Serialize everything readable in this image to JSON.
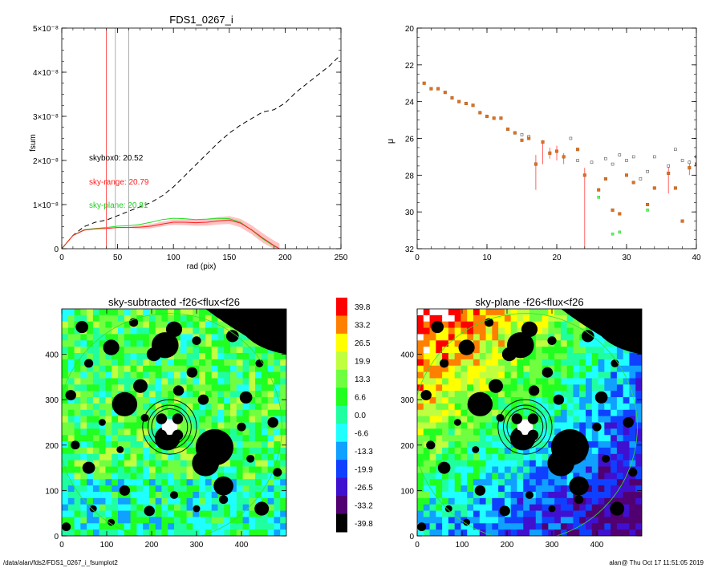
{
  "footer": {
    "path": "/data/alan/fds2/FDS1_0267_i_fsumplot2",
    "stamp": "alan@  Thu Oct 17 11:51:05 2019"
  },
  "colors": {
    "red": "#ff2020",
    "green": "#22dd22",
    "black": "#000000",
    "grey": "#999999",
    "orange": "#e07020"
  },
  "chart_data": [
    {
      "type": "line",
      "title": "FDS1_0267_i",
      "xlabel": "rad (pix)",
      "ylabel": "fsum",
      "xlim": [
        0,
        250
      ],
      "ylim": [
        0,
        5e-08
      ],
      "xticks": [
        "0",
        "50",
        "100",
        "150",
        "200",
        "250"
      ],
      "xtick_values": [
        0,
        50,
        100,
        150,
        200,
        250
      ],
      "yticks": [
        "0",
        "1×10⁻⁸",
        "2×10⁻⁸",
        "3×10⁻⁸",
        "4×10⁻⁸",
        "5×10⁻⁸"
      ],
      "ytick_values": [
        0,
        1e-08,
        2e-08,
        3e-08,
        4e-08,
        5e-08
      ],
      "vlines": [
        {
          "x": 40,
          "color": "red"
        },
        {
          "x": 48,
          "color": "grey"
        },
        {
          "x": 60,
          "color": "grey"
        }
      ],
      "annotations": [
        {
          "text": "skybox0: 20.52",
          "color": "black"
        },
        {
          "text": "sky-range: 20.79",
          "color": "red"
        },
        {
          "text": "sky-plane: 20.81",
          "color": "green"
        }
      ],
      "series": [
        {
          "color": "black",
          "dash": true,
          "x": [
            0,
            10,
            20,
            30,
            40,
            50,
            60,
            70,
            80,
            90,
            100,
            110,
            120,
            130,
            140,
            150,
            160,
            170,
            180,
            190,
            200,
            210,
            220,
            230,
            240,
            248
          ],
          "y": [
            0,
            3e-09,
            5e-09,
            6e-09,
            6.5e-09,
            7.5e-09,
            8.5e-09,
            9.5e-09,
            1.05e-08,
            1.2e-08,
            1.4e-08,
            1.65e-08,
            1.9e-08,
            2.15e-08,
            2.4e-08,
            2.62e-08,
            2.8e-08,
            2.95e-08,
            3.1e-08,
            3.15e-08,
            3.3e-08,
            3.55e-08,
            3.75e-08,
            3.95e-08,
            4.15e-08,
            4.35e-08
          ]
        },
        {
          "color": "green",
          "x": [
            0,
            10,
            20,
            30,
            40,
            50,
            60,
            70,
            80,
            90,
            100,
            110,
            120,
            130,
            140,
            150,
            160,
            170,
            180,
            190,
            195
          ],
          "y": [
            0,
            3e-09,
            4.3e-09,
            4.6e-09,
            4.8e-09,
            5.1e-09,
            5.2e-09,
            5.5e-09,
            6e-09,
            6.6e-09,
            6.9e-09,
            6.8e-09,
            6.6e-09,
            6.7e-09,
            6.9e-09,
            6.8e-09,
            6e-09,
            4.2e-09,
            2.2e-09,
            6e-10,
            0
          ]
        },
        {
          "color": "red",
          "x": [
            0,
            10,
            20,
            30,
            40,
            50,
            60,
            70,
            80,
            90,
            100,
            110,
            120,
            130,
            140,
            150,
            160,
            170,
            180,
            190,
            195
          ],
          "y": [
            0,
            3e-09,
            4.2e-09,
            4.5e-09,
            4.6e-09,
            4.8e-09,
            4.8e-09,
            4.9e-09,
            5.1e-09,
            5.6e-09,
            6e-09,
            6e-09,
            5.9e-09,
            6e-09,
            6.3e-09,
            6.5e-09,
            5.8e-09,
            4.3e-09,
            2.4e-09,
            7e-10,
            0
          ]
        }
      ]
    },
    {
      "type": "scatter",
      "title": "",
      "xlabel": "",
      "ylabel": "μ",
      "xlim": [
        0,
        40
      ],
      "ylim": [
        32,
        20
      ],
      "xticks": [
        "0",
        "10",
        "20",
        "30",
        "40"
      ],
      "xtick_values": [
        0,
        10,
        20,
        30,
        40
      ],
      "yticks": [
        "20",
        "22",
        "24",
        "26",
        "28",
        "30",
        "32"
      ],
      "ytick_values": [
        20,
        22,
        24,
        26,
        28,
        30,
        32
      ],
      "points": [
        {
          "x": 1,
          "y": 23.0
        },
        {
          "x": 2,
          "y": 23.3
        },
        {
          "x": 3,
          "y": 23.3
        },
        {
          "x": 4,
          "y": 23.5
        },
        {
          "x": 5,
          "y": 23.8
        },
        {
          "x": 6,
          "y": 24.0
        },
        {
          "x": 7,
          "y": 24.1
        },
        {
          "x": 8,
          "y": 24.2
        },
        {
          "x": 9,
          "y": 24.6
        },
        {
          "x": 10,
          "y": 24.8
        },
        {
          "x": 11,
          "y": 24.9
        },
        {
          "x": 12,
          "y": 24.9
        },
        {
          "x": 13,
          "y": 25.5
        },
        {
          "x": 14,
          "y": 25.7
        },
        {
          "x": 15,
          "y": 26.1
        },
        {
          "x": 16,
          "y": 26.0
        },
        {
          "x": 17,
          "y": 27.4
        },
        {
          "x": 18,
          "y": 26.2
        },
        {
          "x": 19,
          "y": 26.8
        },
        {
          "x": 20,
          "y": 26.7
        },
        {
          "x": 21,
          "y": 27.0
        },
        {
          "x": 23,
          "y": 26.6
        },
        {
          "x": 24,
          "y": 28.0
        },
        {
          "x": 26,
          "y": 28.8
        },
        {
          "x": 27,
          "y": 28.2
        },
        {
          "x": 28,
          "y": 29.9
        },
        {
          "x": 29,
          "y": 30.1
        },
        {
          "x": 30,
          "y": 28.0
        },
        {
          "x": 31,
          "y": 28.4
        },
        {
          "x": 33,
          "y": 29.6
        },
        {
          "x": 34,
          "y": 28.7
        },
        {
          "x": 36,
          "y": 27.9
        },
        {
          "x": 37,
          "y": 28.7
        },
        {
          "x": 38,
          "y": 30.5
        },
        {
          "x": 39,
          "y": 27.6
        },
        {
          "x": 40,
          "y": 27.4
        }
      ],
      "grey_points": [
        {
          "x": 15,
          "y": 25.8
        },
        {
          "x": 16,
          "y": 25.9
        },
        {
          "x": 22,
          "y": 26.0
        },
        {
          "x": 23,
          "y": 27.2
        },
        {
          "x": 25,
          "y": 27.3
        },
        {
          "x": 27,
          "y": 27.1
        },
        {
          "x": 28,
          "y": 27.4
        },
        {
          "x": 29,
          "y": 26.9
        },
        {
          "x": 30,
          "y": 27.2
        },
        {
          "x": 31,
          "y": 27.0
        },
        {
          "x": 32,
          "y": 28.2
        },
        {
          "x": 33,
          "y": 27.8
        },
        {
          "x": 34,
          "y": 27.0
        },
        {
          "x": 36,
          "y": 27.5
        },
        {
          "x": 37,
          "y": 26.6
        },
        {
          "x": 38,
          "y": 27.2
        },
        {
          "x": 39,
          "y": 27.3
        },
        {
          "x": 40,
          "y": 27.0
        }
      ],
      "green_points": [
        {
          "x": 26,
          "y": 29.2
        },
        {
          "x": 28,
          "y": 31.2
        },
        {
          "x": 29,
          "y": 31.1
        },
        {
          "x": 33,
          "y": 29.9
        }
      ],
      "errorbars": [
        {
          "x": 17,
          "y0": 26.9,
          "y1": 28.8
        },
        {
          "x": 18,
          "y0": 26.1,
          "y1": 27.4
        },
        {
          "x": 19,
          "y0": 26.5,
          "y1": 27.1
        },
        {
          "x": 20,
          "y0": 26.4,
          "y1": 27.2
        },
        {
          "x": 21,
          "y0": 26.8,
          "y1": 27.4
        },
        {
          "x": 24,
          "y0": 27.6,
          "y1": 32.0
        },
        {
          "x": 36,
          "y0": 27.5,
          "y1": 29.0
        },
        {
          "x": 39,
          "y0": 27.2,
          "y1": 28.0
        }
      ]
    },
    {
      "type": "heatmap",
      "title": "sky-subtracted -f26<flux<f26",
      "xlim": [
        0,
        500
      ],
      "ylim": [
        0,
        500
      ],
      "xticks": [
        "0",
        "100",
        "200",
        "300",
        "400"
      ],
      "xtick_values": [
        0,
        100,
        200,
        300,
        400
      ],
      "yticks": [
        "0",
        "100",
        "200",
        "300",
        "400"
      ],
      "ytick_values": [
        0,
        100,
        200,
        300,
        400
      ]
    },
    {
      "type": "heatmap",
      "title": "sky-plane -f26<flux<f26",
      "xlim": [
        0,
        500
      ],
      "ylim": [
        0,
        500
      ],
      "xticks": [
        "0",
        "100",
        "200",
        "300",
        "400"
      ],
      "xtick_values": [
        0,
        100,
        200,
        300,
        400
      ],
      "yticks": [
        "0",
        "100",
        "200",
        "300",
        "400"
      ],
      "ytick_values": [
        0,
        100,
        200,
        300,
        400
      ]
    }
  ],
  "colorbar": {
    "labels": [
      "39.8",
      "33.2",
      "26.5",
      "19.9",
      "13.3",
      "6.6",
      "0.0",
      "-6.6",
      "-13.3",
      "-19.9",
      "-26.5",
      "-33.2",
      "-39.8"
    ],
    "colors": [
      "#ff0000",
      "#ff8000",
      "#ffff00",
      "#c0ff40",
      "#70ff40",
      "#20ff20",
      "#20ffa0",
      "#20ffff",
      "#10a0ff",
      "#1040ff",
      "#4010d0",
      "#500070",
      "#000000"
    ]
  }
}
